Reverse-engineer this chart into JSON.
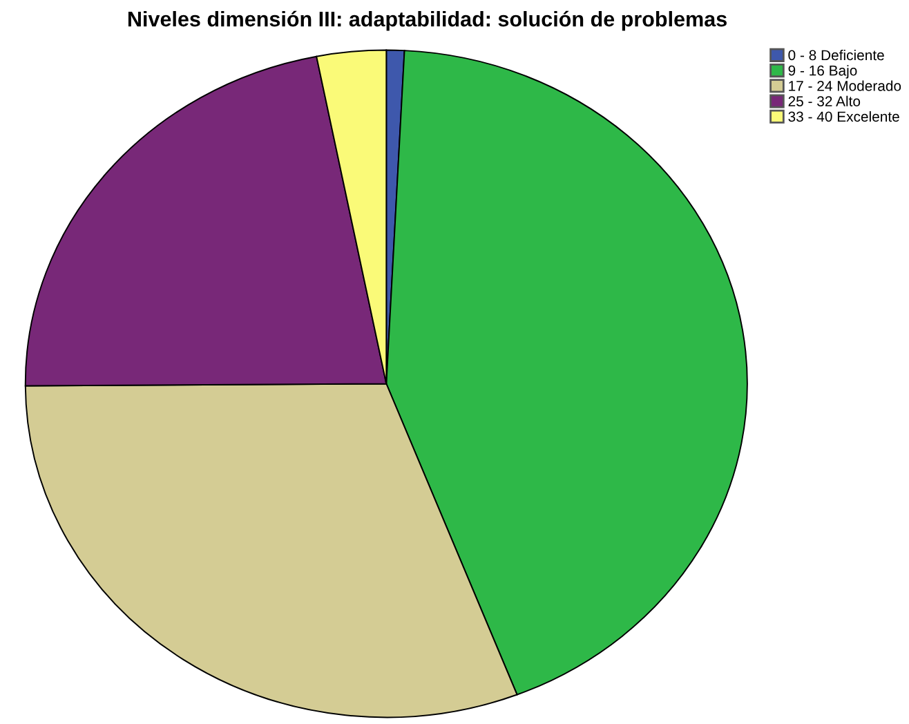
{
  "chart_data": {
    "type": "pie",
    "title": "Niveles dimensión III: adaptabilidad: solución de problemas",
    "categories": [
      "0 - 8 Deficiente",
      "9 - 16 Bajo",
      "17 - 24 Moderado",
      "25 - 32 Alto",
      "33 - 40 Excelente"
    ],
    "values": [
      0.8,
      43.3,
      30.8,
      22.0,
      3.1
    ],
    "colors": [
      "#3e58ac",
      "#2eb848",
      "#d4cc94",
      "#782878",
      "#fafa78"
    ],
    "legend": "top right"
  }
}
